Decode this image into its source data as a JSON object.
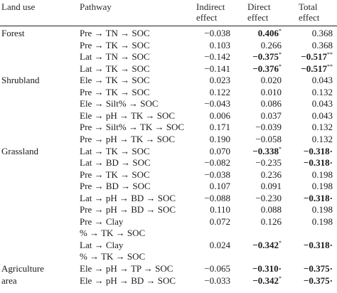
{
  "headers": {
    "land_use": "Land use",
    "pathway": "Pathway",
    "indirect_1": "Indirect",
    "indirect_2": "effect",
    "direct_1": "Direct",
    "direct_2": "effect",
    "total_1": "Total",
    "total_2": "effect"
  },
  "rows": [
    {
      "land_use": "Forest",
      "pathway": "Pre → TN → SOC",
      "indirect": "−0.038",
      "direct": "0.406",
      "direct_sup": "*",
      "direct_bold": true,
      "total": "0.368",
      "total_sup": "",
      "total_bold": false
    },
    {
      "land_use": "",
      "pathway": "Pre → TK → SOC",
      "indirect": "0.103",
      "direct": "0.266",
      "direct_sup": "",
      "direct_bold": false,
      "total": "0.368",
      "total_sup": "",
      "total_bold": false
    },
    {
      "land_use": "",
      "pathway": "Lat → TN → SOC",
      "indirect": "−0.142",
      "direct": "−0.375",
      "direct_sup": "*",
      "direct_bold": true,
      "total": "−0.517",
      "total_sup": "**",
      "total_bold": true
    },
    {
      "land_use": "",
      "pathway": "Lat → TK → SOC",
      "indirect": "−0.141",
      "direct": "−0.376",
      "direct_sup": "*",
      "direct_bold": true,
      "total": "−0.517",
      "total_sup": "**",
      "total_bold": true
    },
    {
      "land_use": "Shrubland",
      "pathway": "Ele → TK → SOC",
      "indirect": "0.023",
      "direct": "0.020",
      "direct_sup": "",
      "direct_bold": false,
      "total": "0.043",
      "total_sup": "",
      "total_bold": false
    },
    {
      "land_use": "",
      "pathway": "Pre → TK → SOC",
      "indirect": "0.122",
      "direct": "0.010",
      "direct_sup": "",
      "direct_bold": false,
      "total": "0.132",
      "total_sup": "",
      "total_bold": false
    },
    {
      "land_use": "",
      "pathway": "Ele → Silt% → SOC",
      "indirect": "−0.043",
      "direct": "0.086",
      "direct_sup": "",
      "direct_bold": false,
      "total": "0.043",
      "total_sup": "",
      "total_bold": false
    },
    {
      "land_use": "",
      "pathway": "Ele → pH → TK → SOC",
      "indirect": "0.006",
      "direct": "0.037",
      "direct_sup": "",
      "direct_bold": false,
      "total": "0.043",
      "total_sup": "",
      "total_bold": false
    },
    {
      "land_use": "",
      "pathway": "Pre → Silt% → TK → SOC",
      "indirect": "0.171",
      "direct": "−0.039",
      "direct_sup": "",
      "direct_bold": false,
      "total": "0.132",
      "total_sup": "",
      "total_bold": false
    },
    {
      "land_use": "",
      "pathway": "Pre → pH → TK → SOC",
      "indirect": "0.190",
      "direct": "−0.058",
      "direct_sup": "",
      "direct_bold": false,
      "total": "0.132",
      "total_sup": "",
      "total_bold": false
    },
    {
      "land_use": "Grassland",
      "pathway": "Lat → TK → SOC",
      "indirect": "0.070",
      "direct": "−0.338",
      "direct_sup": "*",
      "direct_bold": true,
      "total": "−0.318·",
      "total_sup": "",
      "total_bold": true
    },
    {
      "land_use": "",
      "pathway": "Lat → BD → SOC",
      "indirect": "−0.082",
      "direct": "−0.235",
      "direct_sup": "",
      "direct_bold": false,
      "total": "−0.318·",
      "total_sup": "",
      "total_bold": true
    },
    {
      "land_use": "",
      "pathway": "Pre → TK → SOC",
      "indirect": "−0.038",
      "direct": "0.236",
      "direct_sup": "",
      "direct_bold": false,
      "total": "0.198",
      "total_sup": "",
      "total_bold": false
    },
    {
      "land_use": "",
      "pathway": "Pre → BD → SOC",
      "indirect": "0.107",
      "direct": "0.091",
      "direct_sup": "",
      "direct_bold": false,
      "total": "0.198",
      "total_sup": "",
      "total_bold": false
    },
    {
      "land_use": "",
      "pathway": "Lat → pH → BD → SOC",
      "indirect": "−0.088",
      "direct": "−0.230",
      "direct_sup": "",
      "direct_bold": false,
      "total": "−0.318·",
      "total_sup": "",
      "total_bold": true
    },
    {
      "land_use": "",
      "pathway": "Pre → pH → BD → SOC",
      "indirect": "0.110",
      "direct": "0.088",
      "direct_sup": "",
      "direct_bold": false,
      "total": "0.198",
      "total_sup": "",
      "total_bold": false
    },
    {
      "land_use": "",
      "pathway": "Pre → Clay",
      "indirect": "0.072",
      "direct": "0.126",
      "direct_sup": "",
      "direct_bold": false,
      "total": "0.198",
      "total_sup": "",
      "total_bold": false
    },
    {
      "land_use": "",
      "pathway": "% → TK → SOC",
      "indirect": "",
      "direct": "",
      "direct_sup": "",
      "direct_bold": false,
      "total": "",
      "total_sup": "",
      "total_bold": false
    },
    {
      "land_use": "",
      "pathway": "Lat → Clay",
      "indirect": "0.024",
      "direct": "−0.342",
      "direct_sup": "*",
      "direct_bold": true,
      "total": "−0.318·",
      "total_sup": "",
      "total_bold": true
    },
    {
      "land_use": "",
      "pathway": "% → TK → SOC",
      "indirect": "",
      "direct": "",
      "direct_sup": "",
      "direct_bold": false,
      "total": "",
      "total_sup": "",
      "total_bold": false
    },
    {
      "land_use": "Agriculture",
      "pathway": "Ele → pH → TP → SOC",
      "indirect": "−0.065",
      "direct": "−0.310·",
      "direct_sup": "",
      "direct_bold": true,
      "total": "−0.375·",
      "total_sup": "",
      "total_bold": true
    },
    {
      "land_use": "area",
      "pathway": "Ele → pH → BD → SOC",
      "indirect": "−0.033",
      "direct": "−0.342",
      "direct_sup": "*",
      "direct_bold": true,
      "total": "−0.375·",
      "total_sup": "",
      "total_bold": true
    }
  ]
}
